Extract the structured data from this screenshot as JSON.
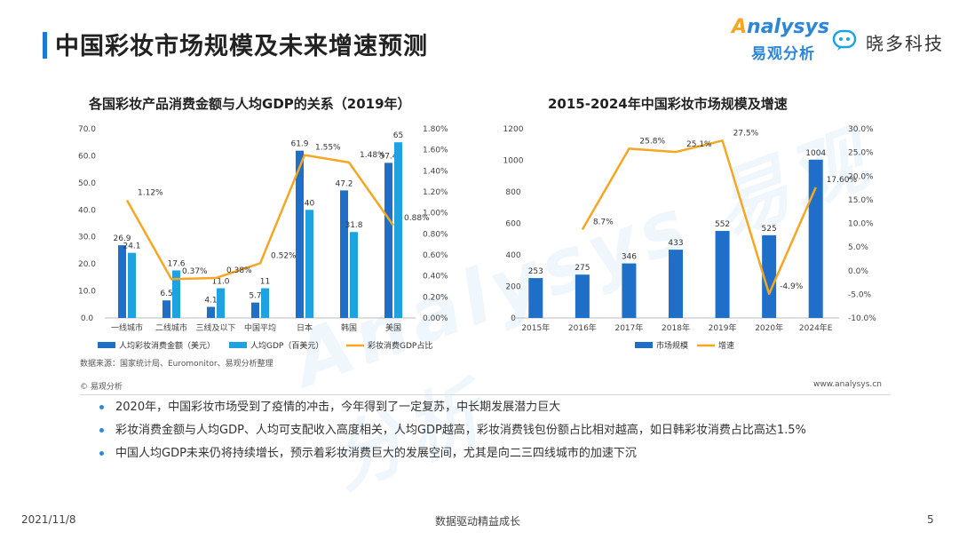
{
  "header": {
    "title": "中国彩妆市场规模及未来增速预测",
    "brand_analysys": "nalysys",
    "brand_analysys_prefix": "A",
    "brand_analysys_cn": "易观分析",
    "brand_xiaoduo": "晓多科技"
  },
  "watermark": "Analysys 易观分析",
  "chart_data": [
    {
      "type": "bar",
      "title": "各国彩妆产品消费金额与人均GDP的关系（2019年）",
      "categories": [
        "一线城市",
        "二线城市",
        "三线及以下",
        "中国平均",
        "日本",
        "韩国",
        "美国"
      ],
      "series": [
        {
          "name": "人均彩妆消费金额（美元）",
          "type": "bar",
          "axis": "left",
          "color": "#1f6fc9",
          "values": [
            26.9,
            6.5,
            4.1,
            5.7,
            61.9,
            47.2,
            57.4
          ],
          "labels": [
            "26.9",
            "6.5",
            "4.1",
            "5.7",
            "61.9",
            "47.2",
            "57.4"
          ]
        },
        {
          "name": "人均GDP（百美元）",
          "type": "bar",
          "axis": "left",
          "color": "#1fa3e0",
          "values": [
            24.1,
            17.6,
            11.0,
            11,
            40,
            31.8,
            65
          ],
          "labels": [
            "24.1",
            "17.6",
            "11.0",
            "11",
            "40",
            "31.8",
            "65"
          ]
        },
        {
          "name": "彩妆消费GDP占比",
          "type": "line",
          "axis": "right",
          "color": "#f5a623",
          "values": [
            1.12,
            0.37,
            0.38,
            0.52,
            1.55,
            1.48,
            0.88
          ],
          "labels": [
            "1.12%",
            "0.37%",
            "0.38%",
            "0.52%",
            "1.55%",
            "1.48%",
            "0.88%"
          ]
        }
      ],
      "y_left": {
        "min": 0,
        "max": 70,
        "ticks": [
          "0.0",
          "10.0",
          "20.0",
          "30.0",
          "40.0",
          "50.0",
          "60.0",
          "70.0"
        ]
      },
      "y_right": {
        "min": 0,
        "max": 1.8,
        "ticks": [
          "0.00%",
          "0.20%",
          "0.40%",
          "0.60%",
          "0.80%",
          "1.00%",
          "1.20%",
          "1.40%",
          "1.60%",
          "1.80%"
        ]
      },
      "legend": "bottom"
    },
    {
      "type": "bar",
      "title": "2015-2024年中国彩妆市场规模及增速",
      "categories": [
        "2015年",
        "2016年",
        "2017年",
        "2018年",
        "2019年",
        "2020年",
        "2024年E"
      ],
      "series": [
        {
          "name": "市场规模",
          "type": "bar",
          "axis": "left",
          "color": "#1f6fc9",
          "values": [
            253,
            275,
            346,
            433,
            552,
            525,
            1004
          ],
          "labels": [
            "253",
            "275",
            "346",
            "433",
            "552",
            "525",
            "1004"
          ]
        },
        {
          "name": "增速",
          "type": "line",
          "axis": "right",
          "color": "#f5a623",
          "values": [
            null,
            8.7,
            25.8,
            25.1,
            27.5,
            -4.9,
            17.6
          ],
          "labels": [
            "",
            "8.7%",
            "25.8%",
            "25.1%",
            "27.5%",
            "-4.9%",
            "17.60%"
          ]
        }
      ],
      "y_left": {
        "min": 0,
        "max": 1200,
        "ticks": [
          "0",
          "200",
          "400",
          "600",
          "800",
          "1000",
          "1200"
        ]
      },
      "y_right": {
        "min": -10,
        "max": 30,
        "ticks": [
          "-10.0%",
          "-5.0%",
          "0.0%",
          "5.0%",
          "10.0%",
          "15.0%",
          "20.0%",
          "25.0%",
          "30.0%"
        ]
      },
      "legend": "bottom"
    }
  ],
  "source_note": "数据来源：国家统计局、Euromonitor、易观分析整理",
  "copyright": "© 易观分析",
  "website": "www.analysys.cn",
  "bullets": [
    "2020年，中国彩妆市场受到了疫情的冲击，今年得到了一定复苏，中长期发展潜力巨大",
    "彩妆消费金额与人均GDP、人均可支配收入高度相关，人均GDP越高，彩妆消费钱包份额占比相对越高，如日韩彩妆消费占比高达1.5%",
    "中国人均GDP未来仍将持续增长，预示着彩妆消费巨大的发展空间，尤其是向二三四线城市的加速下沉"
  ],
  "footer": {
    "date": "2021/11/8",
    "slogan": "数据驱动精益成长",
    "page": "5"
  }
}
